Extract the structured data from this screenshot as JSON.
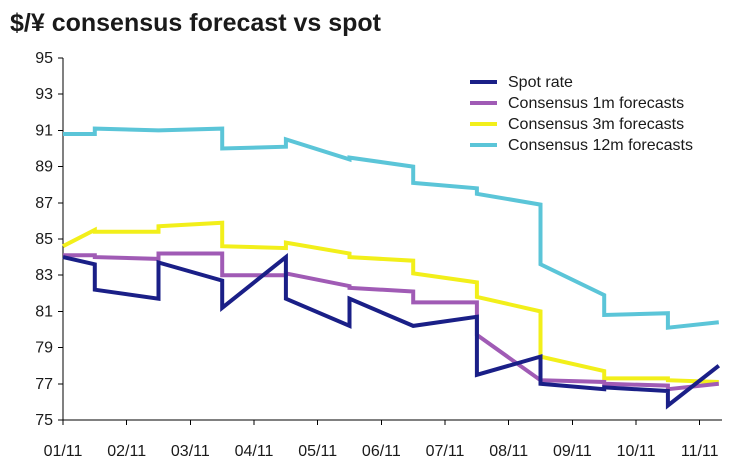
{
  "chart_data": {
    "type": "line",
    "title": "$/¥ consensus forecast vs spot",
    "xlabel": "",
    "ylabel": "",
    "ylim": [
      75,
      95
    ],
    "xlim": [
      0,
      10.35
    ],
    "yticks": [
      "95",
      "93",
      "91",
      "89",
      "87",
      "85",
      "83",
      "81",
      "79",
      "77",
      "75"
    ],
    "categories": [
      "01/11",
      "02/11",
      "03/11",
      "04/11",
      "05/11",
      "06/11",
      "07/11",
      "08/11",
      "09/11",
      "10/11",
      "11/11"
    ],
    "legend_position": "top-right",
    "series": [
      {
        "name": "Spot rate",
        "color": "#1a1f87",
        "x": [
          0,
          0.5,
          0.5,
          1.5,
          1.5,
          2.5,
          2.5,
          3.5,
          3.5,
          4.5,
          4.5,
          5.5,
          5.5,
          6.5,
          6.5,
          7.5,
          7.5,
          8.5,
          8.5,
          9.5,
          9.5,
          10.3
        ],
        "y": [
          84.0,
          83.6,
          82.2,
          81.7,
          83.7,
          82.7,
          81.2,
          84.0,
          81.7,
          80.2,
          81.7,
          80.2,
          80.2,
          80.7,
          77.5,
          78.5,
          77.0,
          76.7,
          76.8,
          76.6,
          75.8,
          78.0
        ]
      },
      {
        "name": "Consensus 1m forecasts",
        "color": "#a05bb5",
        "x": [
          0,
          0.5,
          0.5,
          1.5,
          1.5,
          2.5,
          2.5,
          3.5,
          3.5,
          4.5,
          4.5,
          5.5,
          5.5,
          6.5,
          6.5,
          7.5,
          7.5,
          8.5,
          8.5,
          9.5,
          9.5,
          10.3
        ],
        "y": [
          84.1,
          84.1,
          84.0,
          83.9,
          84.2,
          84.2,
          83.0,
          83.0,
          83.1,
          82.4,
          82.3,
          82.1,
          81.5,
          81.5,
          79.7,
          77.2,
          77.2,
          77.1,
          77.0,
          76.9,
          76.7,
          77.0
        ]
      },
      {
        "name": "Consensus 3m forecasts",
        "color": "#f2ef1a",
        "x": [
          0,
          0.5,
          0.5,
          1.5,
          1.5,
          2.5,
          2.5,
          3.5,
          3.5,
          4.5,
          4.5,
          5.5,
          5.5,
          6.5,
          6.5,
          7.5,
          7.5,
          8.5,
          8.5,
          9.5,
          9.5,
          10.3
        ],
        "y": [
          84.6,
          85.5,
          85.4,
          85.4,
          85.7,
          85.9,
          84.6,
          84.5,
          84.8,
          84.2,
          84.0,
          83.8,
          83.1,
          82.6,
          81.8,
          81.0,
          78.5,
          77.7,
          77.3,
          77.3,
          77.2,
          77.1
        ]
      },
      {
        "name": "Consensus 12m forecasts",
        "color": "#5bc5d8",
        "x": [
          0,
          0.5,
          0.5,
          1.5,
          1.5,
          2.5,
          2.5,
          3.5,
          3.5,
          4.5,
          4.5,
          5.5,
          5.5,
          6.5,
          6.5,
          7.5,
          7.5,
          8.5,
          8.5,
          9.5,
          9.5,
          10.3
        ],
        "y": [
          90.8,
          90.8,
          91.1,
          91.0,
          91.0,
          91.1,
          90.0,
          90.1,
          90.5,
          89.4,
          89.5,
          89.0,
          88.1,
          87.8,
          87.5,
          86.9,
          83.6,
          81.9,
          80.8,
          80.9,
          80.1,
          80.4
        ]
      }
    ]
  }
}
